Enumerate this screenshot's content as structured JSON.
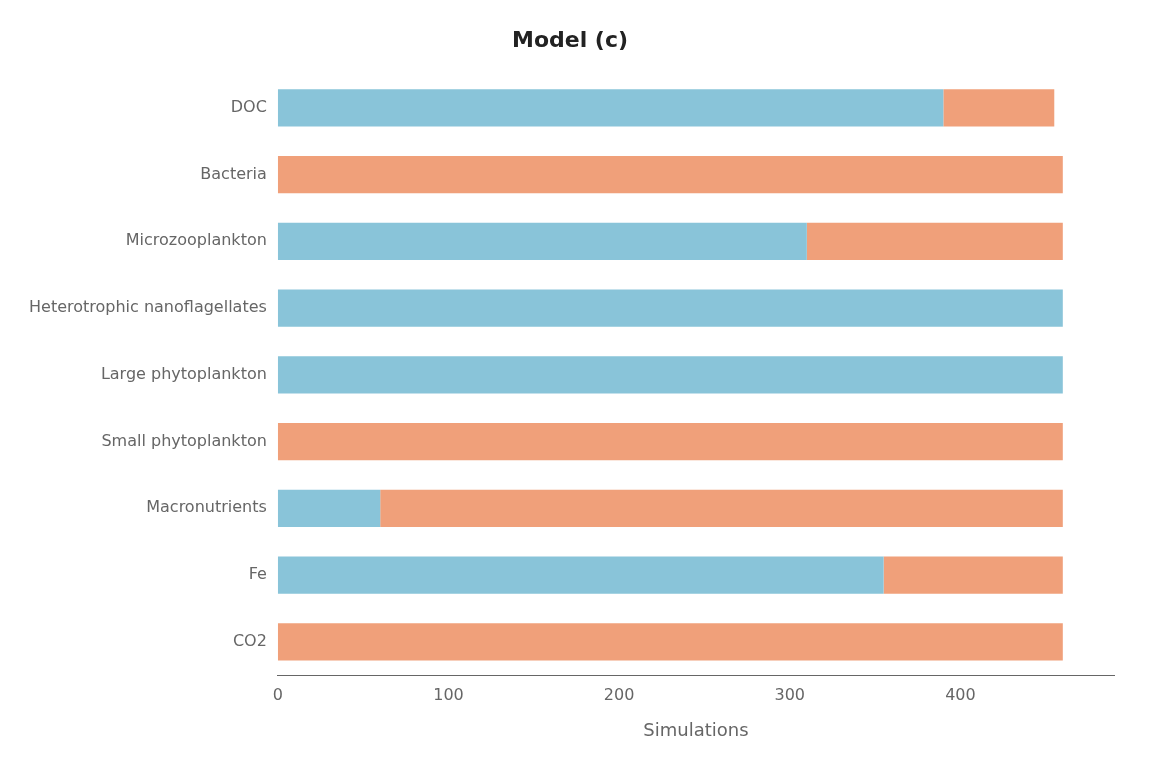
{
  "chart_data": {
    "type": "bar",
    "orientation": "horizontal",
    "stacked": true,
    "title": "Model (c)",
    "xlabel": "Simulations",
    "categories": [
      "DOC",
      "Bacteria",
      "Microzooplankton",
      "Heterotrophic nanoflagellates",
      "Large phytoplankton",
      "Small phytoplankton",
      "Macronutrients",
      "Fe",
      "CO2"
    ],
    "series": [
      {
        "color": "#89C4D9",
        "values": [
          390,
          0,
          310,
          460,
          460,
          0,
          60,
          355,
          0
        ]
      },
      {
        "color": "#F0A07A",
        "values": [
          65,
          460,
          150,
          0,
          0,
          460,
          400,
          105,
          460
        ]
      }
    ],
    "xlim": [
      0,
      490
    ],
    "xticks": [
      0,
      100,
      200,
      300,
      400
    ],
    "grid": false
  }
}
